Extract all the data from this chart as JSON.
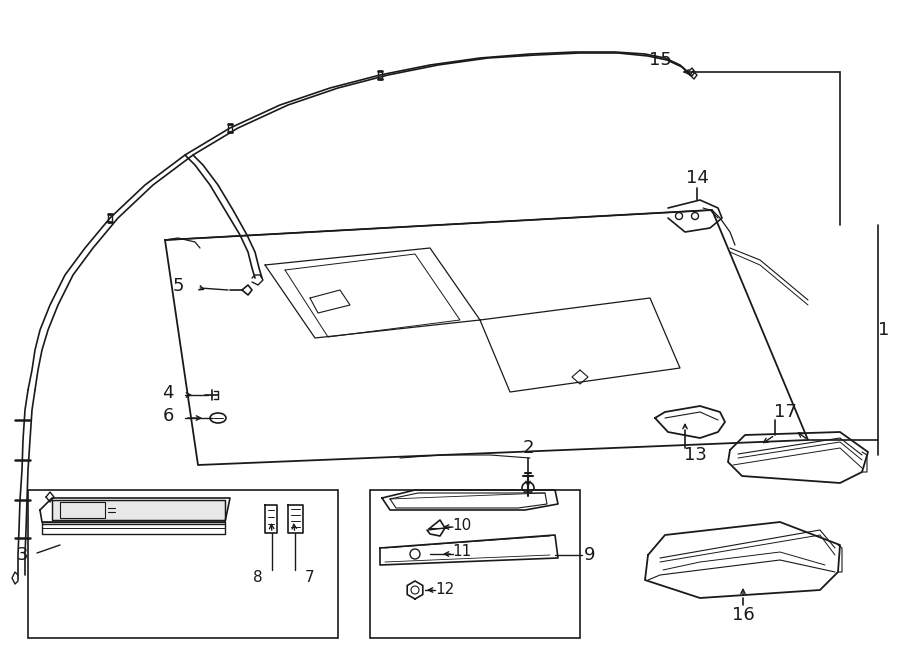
{
  "bg_color": "#ffffff",
  "lc": "#1a1a1a",
  "lw": 1.0,
  "figsize": [
    9.0,
    6.61
  ],
  "dpi": 100,
  "xlim": [
    0,
    900
  ],
  "ylim": [
    0,
    661
  ]
}
